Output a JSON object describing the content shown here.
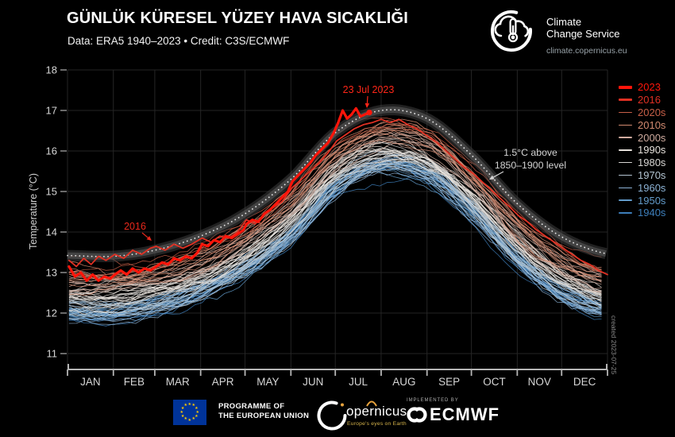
{
  "header": {
    "title": "GÜNLÜK KÜRESEL YÜZEY HAVA SICAKLIĞI",
    "subtitle": "Data: ERA5 1940–2023  •  Credit: C3S/ECMWF"
  },
  "logo": {
    "line1": "Climate",
    "line2": "Change Service",
    "url": "climate.copernicus.eu"
  },
  "axes": {
    "y_title": "Temperature (°C)",
    "y_ticks": [
      11,
      12,
      13,
      14,
      15,
      16,
      17,
      18
    ],
    "months": [
      "JAN",
      "FEB",
      "MAR",
      "APR",
      "MAY",
      "JUN",
      "JUL",
      "AUG",
      "SEP",
      "OCT",
      "NOV",
      "DEC"
    ]
  },
  "annotations": {
    "peak_label": "23 Jul 2023",
    "y2016_label": "2016",
    "threshold_line1": "1.5°C above",
    "threshold_line2": "1850–1900 level"
  },
  "watermark": "created 2023-07-25",
  "legend": {
    "items": [
      {
        "label": "2023",
        "color": "#ff150a",
        "weight": 3.5
      },
      {
        "label": "2016",
        "color": "#e03023",
        "weight": 2.5
      },
      {
        "label": "2020s",
        "color": "#c75f48",
        "weight": 1.3
      },
      {
        "label": "2010s",
        "color": "#d28a70",
        "weight": 1.3
      },
      {
        "label": "2000s",
        "color": "#cfab9f",
        "weight": 1.3
      },
      {
        "label": "1990s",
        "color": "#e7e2dc",
        "weight": 1.3
      },
      {
        "label": "1980s",
        "color": "#d7d5d2",
        "weight": 1.3
      },
      {
        "label": "1970s",
        "color": "#b4c5d2",
        "weight": 1.3
      },
      {
        "label": "1960s",
        "color": "#8db3d6",
        "weight": 1.3
      },
      {
        "label": "1950s",
        "color": "#639ccb",
        "weight": 1.3
      },
      {
        "label": "1940s",
        "color": "#3d7eba",
        "weight": 1.3
      }
    ]
  },
  "footer": {
    "eu_line1": "PROGRAMME OF",
    "eu_line2": "THE EUROPEAN UNION",
    "copernicus_word": "opernicus",
    "copernicus_sub": "Europe's eyes on Earth",
    "implemented_by": "IMPLEMENTED BY",
    "ecmwf": "ECMWF"
  },
  "chart_data": {
    "type": "line",
    "title": "GÜNLÜK KÜRESEL YÜZEY HAVA SICAKLIĞI (Daily global surface air temperature)",
    "xlabel": "",
    "ylabel": "Temperature (°C)",
    "ylim": [
      10.5,
      18
    ],
    "grid": true,
    "legend_position": "right",
    "month_boundary_days": [
      0,
      31,
      59,
      90,
      120,
      151,
      181,
      212,
      243,
      273,
      304,
      334,
      365
    ],
    "threshold_1_5C": {
      "label": "1.5°C above 1850–1900 level",
      "month_start_values": [
        13.42,
        13.4,
        13.55,
        13.9,
        14.45,
        15.3,
        16.45,
        17.0,
        16.8,
        15.9,
        14.7,
        13.88,
        13.46
      ],
      "band_color": "#3d3d3d",
      "dot_color": "#ececec"
    },
    "series": [
      {
        "name": "2023",
        "color": "#ff150a",
        "width": 3.2,
        "end_marker": true,
        "points": [
          [
            1,
            13.15
          ],
          [
            5,
            12.9
          ],
          [
            9,
            13.0
          ],
          [
            13,
            12.8
          ],
          [
            17,
            12.95
          ],
          [
            21,
            12.8
          ],
          [
            25,
            12.9
          ],
          [
            29,
            12.85
          ],
          [
            32,
            12.95
          ],
          [
            36,
            13.05
          ],
          [
            40,
            12.95
          ],
          [
            44,
            13.1
          ],
          [
            48,
            13.0
          ],
          [
            52,
            13.1
          ],
          [
            56,
            13.05
          ],
          [
            60,
            13.15
          ],
          [
            64,
            13.25
          ],
          [
            68,
            13.2
          ],
          [
            72,
            13.35
          ],
          [
            76,
            13.3
          ],
          [
            80,
            13.4
          ],
          [
            84,
            13.35
          ],
          [
            88,
            13.5
          ],
          [
            91,
            13.7
          ],
          [
            95,
            13.65
          ],
          [
            99,
            13.8
          ],
          [
            103,
            13.75
          ],
          [
            107,
            13.9
          ],
          [
            111,
            13.85
          ],
          [
            115,
            13.95
          ],
          [
            119,
            14.05
          ],
          [
            121,
            14.2
          ],
          [
            125,
            14.3
          ],
          [
            129,
            14.25
          ],
          [
            133,
            14.45
          ],
          [
            137,
            14.55
          ],
          [
            141,
            14.7
          ],
          [
            145,
            14.85
          ],
          [
            149,
            15.0
          ],
          [
            152,
            15.25
          ],
          [
            156,
            15.4
          ],
          [
            160,
            15.55
          ],
          [
            164,
            15.7
          ],
          [
            168,
            15.9
          ],
          [
            172,
            16.05
          ],
          [
            176,
            16.2
          ],
          [
            180,
            16.45
          ],
          [
            183,
            16.7
          ],
          [
            186,
            17.0
          ],
          [
            189,
            16.8
          ],
          [
            192,
            16.9
          ],
          [
            195,
            17.05
          ],
          [
            198,
            16.85
          ],
          [
            201,
            16.9
          ],
          [
            204,
            16.95
          ]
        ]
      },
      {
        "name": "2016",
        "color": "#e03023",
        "width": 1.8,
        "end_marker": false,
        "points": [
          [
            1,
            13.3
          ],
          [
            6,
            13.15
          ],
          [
            11,
            13.35
          ],
          [
            16,
            13.2
          ],
          [
            21,
            13.4
          ],
          [
            26,
            13.3
          ],
          [
            32,
            13.45
          ],
          [
            38,
            13.35
          ],
          [
            44,
            13.55
          ],
          [
            50,
            13.45
          ],
          [
            56,
            13.6
          ],
          [
            60,
            13.65
          ],
          [
            66,
            13.55
          ],
          [
            72,
            13.7
          ],
          [
            78,
            13.6
          ],
          [
            84,
            13.7
          ],
          [
            91,
            13.85
          ],
          [
            97,
            13.75
          ],
          [
            103,
            13.9
          ],
          [
            109,
            13.85
          ],
          [
            115,
            14.0
          ],
          [
            121,
            14.3
          ],
          [
            127,
            14.2
          ],
          [
            133,
            14.45
          ],
          [
            139,
            14.6
          ],
          [
            145,
            14.75
          ],
          [
            152,
            15.1
          ],
          [
            158,
            15.3
          ],
          [
            164,
            15.5
          ],
          [
            170,
            15.7
          ],
          [
            176,
            15.95
          ],
          [
            182,
            16.25
          ],
          [
            188,
            16.4
          ],
          [
            194,
            16.55
          ],
          [
            200,
            16.65
          ],
          [
            206,
            16.7
          ],
          [
            212,
            16.78
          ],
          [
            218,
            16.7
          ],
          [
            224,
            16.78
          ],
          [
            230,
            16.65
          ],
          [
            236,
            16.55
          ],
          [
            244,
            16.35
          ],
          [
            250,
            16.2
          ],
          [
            256,
            16.0
          ],
          [
            262,
            15.8
          ],
          [
            268,
            15.6
          ],
          [
            274,
            15.45
          ],
          [
            280,
            15.25
          ],
          [
            286,
            15.05
          ],
          [
            292,
            14.85
          ],
          [
            298,
            14.65
          ],
          [
            305,
            14.4
          ],
          [
            311,
            14.25
          ],
          [
            317,
            14.05
          ],
          [
            323,
            13.9
          ],
          [
            329,
            13.75
          ],
          [
            335,
            13.6
          ],
          [
            341,
            13.45
          ],
          [
            347,
            13.3
          ],
          [
            353,
            13.2
          ],
          [
            359,
            13.05
          ],
          [
            365,
            12.95
          ]
        ]
      }
    ],
    "ensemble": {
      "year_start": 1940,
      "year_end": 2022,
      "climatology_month_start_values": [
        12.02,
        12.0,
        12.15,
        12.5,
        13.05,
        13.9,
        15.05,
        15.6,
        15.4,
        14.5,
        13.3,
        12.48,
        12.06
      ],
      "warming_offset_anchors": [
        [
          1940,
          -0.02
        ],
        [
          1945,
          0.0
        ],
        [
          1950,
          0.02
        ],
        [
          1955,
          0.04
        ],
        [
          1960,
          0.04
        ],
        [
          1965,
          0.06
        ],
        [
          1970,
          0.07
        ],
        [
          1975,
          0.12
        ],
        [
          1980,
          0.2
        ],
        [
          1985,
          0.3
        ],
        [
          1990,
          0.38
        ],
        [
          1995,
          0.46
        ],
        [
          2000,
          0.56
        ],
        [
          2005,
          0.68
        ],
        [
          2010,
          0.76
        ],
        [
          2015,
          0.9
        ],
        [
          2020,
          1.0
        ],
        [
          2022,
          1.06
        ]
      ],
      "year_offset_amplitude": 0.26,
      "jitter_amplitude": 0.1,
      "decades": [
        {
          "name": "1940s",
          "color": "#3d7eba"
        },
        {
          "name": "1950s",
          "color": "#639ccb"
        },
        {
          "name": "1960s",
          "color": "#8db3d6"
        },
        {
          "name": "1970s",
          "color": "#b4c5d2"
        },
        {
          "name": "1980s",
          "color": "#d7d5d2"
        },
        {
          "name": "1990s",
          "color": "#e7e2dc"
        },
        {
          "name": "2000s",
          "color": "#cfab9f"
        },
        {
          "name": "2010s",
          "color": "#d28a70"
        },
        {
          "name": "2020s",
          "color": "#c75f48"
        }
      ]
    }
  }
}
